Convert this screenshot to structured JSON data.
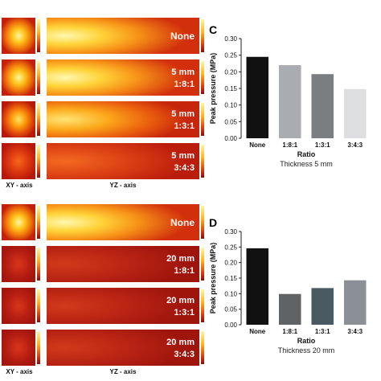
{
  "groups": [
    {
      "id": "top",
      "rows": [
        {
          "line1": "None",
          "line2": ""
        },
        {
          "line1": "5 mm",
          "line2": "1:8:1"
        },
        {
          "line1": "5 mm",
          "line2": "1:3:1"
        },
        {
          "line1": "5 mm",
          "line2": "3:4:3"
        }
      ],
      "xy_caption": "XY - axis",
      "yz_caption": "YZ - axis"
    },
    {
      "id": "bottom",
      "rows": [
        {
          "line1": "None",
          "line2": ""
        },
        {
          "line1": "20 mm",
          "line2": "1:8:1"
        },
        {
          "line1": "20 mm",
          "line2": "1:3:1"
        },
        {
          "line1": "20 mm",
          "line2": "3:4:3"
        }
      ],
      "xy_caption": "XY - axis",
      "yz_caption": "YZ - axis"
    }
  ],
  "chart_data": [
    {
      "panel_letter": "C",
      "type": "bar",
      "categories": [
        "None",
        "1:8:1",
        "1:3:1",
        "3:4:3"
      ],
      "values": [
        0.245,
        0.22,
        0.193,
        0.148
      ],
      "bar_colors": [
        "#111111",
        "#a9adb1",
        "#7b7e81",
        "#dcdedf"
      ],
      "xlabel": "Ratio",
      "subtitle": "Thickness 5 mm",
      "ylabel": "Peak pressure (MPa)",
      "ylim": [
        0,
        0.3
      ],
      "yticks": [
        "0.00",
        "0.05",
        "0.10",
        "0.15",
        "0.20",
        "0.25",
        "0.30"
      ]
    },
    {
      "panel_letter": "D",
      "type": "bar",
      "categories": [
        "None",
        "1:8:1",
        "1:3:1",
        "3:4:3"
      ],
      "values": [
        0.246,
        0.099,
        0.118,
        0.143
      ],
      "bar_colors": [
        "#111111",
        "#5f6366",
        "#4a5a62",
        "#8b9096"
      ],
      "xlabel": "Ratio",
      "subtitle": "Thickness 20 mm",
      "ylabel": "Peak pressure (MPa)",
      "ylim": [
        0,
        0.3
      ],
      "yticks": [
        "0.00",
        "0.05",
        "0.10",
        "0.15",
        "0.20",
        "0.25",
        "0.30"
      ]
    }
  ]
}
